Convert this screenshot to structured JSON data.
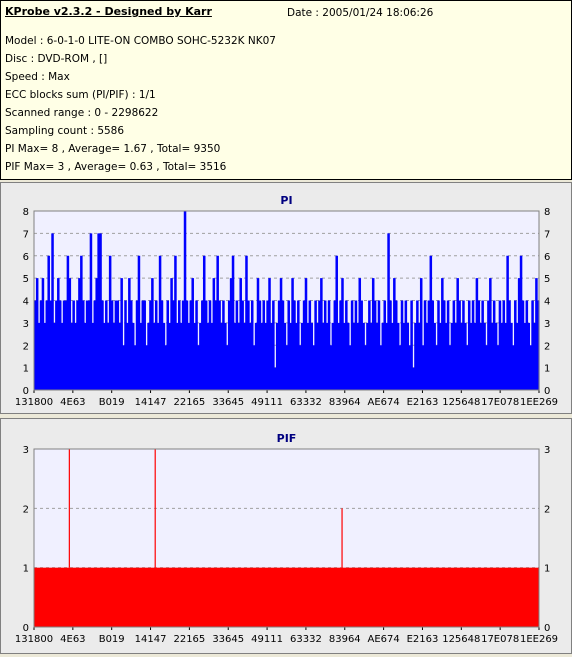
{
  "header": {
    "title": "KProbe v2.3.2 - Designed by Karr",
    "date": "Date : 2005/01/24 18:06:26",
    "lines": [
      "Model : 6-0-1-0 LITE-ON COMBO SOHC-5232K NK07",
      "Disc : DVD-ROM ,  []",
      "Speed : Max",
      "ECC blocks sum (PI/PIF) : 1/1",
      "Scanned range : 0 - 2298622",
      "Sampling count : 5586",
      "PI Max= 8 , Average= 1.67 , Total= 9350",
      "PIF Max= 3 , Average= 0.63 , Total= 3516"
    ]
  },
  "colors": {
    "pi": "#0000ff",
    "pif": "#ff0000",
    "plot_bg": "#f0f0ff",
    "title_text": "#000080",
    "info_bg": "#ffffe6"
  },
  "chart_data": [
    {
      "type": "bar",
      "title": "PI",
      "xlabel": "",
      "ylabel": "",
      "ylim": [
        0,
        8
      ],
      "y_ticks": [
        "0",
        "1",
        "2",
        "3",
        "4",
        "5",
        "6",
        "7",
        "8"
      ],
      "x_tick_labels": [
        "131800",
        "4E63",
        "B019",
        "14147",
        "22165",
        "33645",
        "49111",
        "63332",
        "83964",
        "AE674",
        "E2163",
        "125648",
        "17E078",
        "1EE269"
      ],
      "grid": true,
      "max": 8,
      "average": 1.67,
      "total": 9350,
      "values": [
        4,
        5,
        3,
        4,
        5,
        3,
        4,
        6,
        4,
        7,
        3,
        4,
        5,
        4,
        3,
        4,
        4,
        6,
        5,
        3,
        4,
        3,
        4,
        5,
        6,
        4,
        3,
        4,
        4,
        7,
        3,
        4,
        5,
        7,
        7,
        4,
        3,
        4,
        3,
        6,
        4,
        3,
        4,
        4,
        3,
        5,
        2,
        4,
        3,
        5,
        4,
        3,
        2,
        4,
        6,
        3,
        4,
        4,
        2,
        3,
        4,
        5,
        3,
        4,
        3,
        6,
        4,
        3,
        2,
        4,
        3,
        5,
        4,
        6,
        3,
        4,
        3,
        4,
        8,
        4,
        3,
        4,
        5,
        3,
        4,
        2,
        3,
        4,
        6,
        4,
        3,
        4,
        3,
        5,
        4,
        6,
        4,
        3,
        4,
        3,
        2,
        4,
        5,
        6,
        3,
        4,
        3,
        5,
        4,
        3,
        6,
        4,
        3,
        4,
        2,
        3,
        5,
        4,
        3,
        4,
        3,
        4,
        5,
        3,
        4,
        1,
        3,
        4,
        5,
        4,
        3,
        2,
        4,
        3,
        5,
        4,
        3,
        4,
        2,
        3,
        4,
        5,
        3,
        4,
        3,
        2,
        4,
        3,
        4,
        5,
        3,
        4,
        3,
        4,
        2,
        3,
        4,
        6,
        3,
        4,
        5,
        3,
        4,
        3,
        2,
        4,
        3,
        4,
        3,
        5,
        4,
        3,
        2,
        3,
        4,
        3,
        5,
        4,
        3,
        4,
        2,
        3,
        4,
        3,
        7,
        4,
        3,
        5,
        4,
        3,
        2,
        4,
        3,
        4,
        3,
        2,
        4,
        1,
        3,
        4,
        3,
        5,
        2,
        4,
        3,
        4,
        6,
        4,
        3,
        2,
        4,
        3,
        5,
        4,
        3,
        4,
        2,
        3,
        4,
        3,
        5,
        4,
        3,
        4,
        3,
        2,
        4,
        3,
        4,
        3,
        5,
        4,
        3,
        4,
        3,
        2,
        4,
        5,
        3,
        4,
        3,
        2,
        4,
        3,
        4,
        3,
        6,
        4,
        3,
        2,
        4,
        3,
        5,
        6,
        4,
        3,
        4,
        3,
        2,
        4,
        3,
        5,
        4
      ]
    },
    {
      "type": "bar",
      "title": "PIF",
      "xlabel": "",
      "ylabel": "",
      "ylim": [
        0,
        3
      ],
      "y_ticks": [
        "0",
        "1",
        "2",
        "3"
      ],
      "x_tick_labels": [
        "131800",
        "4E63",
        "B019",
        "14147",
        "22165",
        "33645",
        "49111",
        "63332",
        "83964",
        "AE674",
        "E2163",
        "125648",
        "17E078",
        "1EE269"
      ],
      "grid": true,
      "max": 3,
      "average": 0.63,
      "total": 3516,
      "baseline": 1,
      "spikes": [
        {
          "position": 0.07,
          "value": 3
        },
        {
          "position": 0.24,
          "value": 3
        },
        {
          "position": 0.61,
          "value": 2
        }
      ]
    }
  ]
}
